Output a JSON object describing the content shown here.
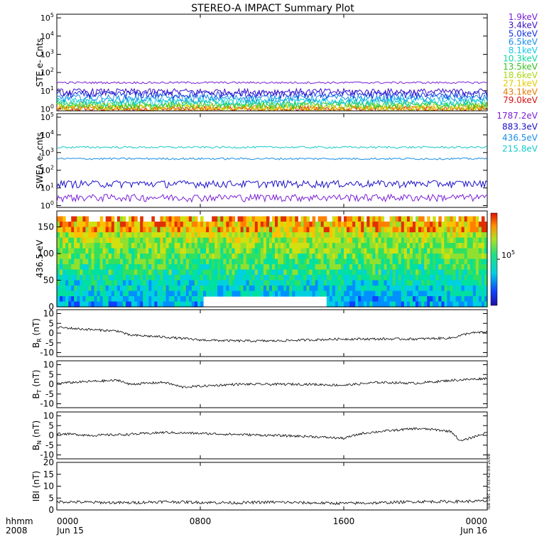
{
  "title": "STEREO-A IMPACT Summary Plot",
  "stamp": "Tue Dec 13 03:42:59 2008",
  "chart_data": {
    "type": "line",
    "x_axis": {
      "row_label_1": "hhmm",
      "row_label_2": "2008",
      "ticks": [
        {
          "time": "0000",
          "date": "Jun 15"
        },
        {
          "time": "0800",
          "date": ""
        },
        {
          "time": "1600",
          "date": ""
        },
        {
          "time": "0000",
          "date": "Jun 16"
        }
      ],
      "range_hours": [
        0,
        24
      ]
    },
    "panels": [
      {
        "id": "ste",
        "kind": "log-lines",
        "ylabel": "STE e- Cnts",
        "y_exponents": [
          0,
          1,
          2,
          3,
          4,
          5
        ],
        "series": [
          {
            "name": "1.9keV",
            "color": "#7a1fd6",
            "level": 28
          },
          {
            "name": "3.4keV",
            "color": "#3b10c8",
            "level": 9
          },
          {
            "name": "5.0keV",
            "color": "#1535e0",
            "level": 6.5
          },
          {
            "name": "6.5keV",
            "color": "#1a8ee8",
            "level": 4.2
          },
          {
            "name": "8.1keV",
            "color": "#18c8e8",
            "level": 3.0
          },
          {
            "name": "10.3keV",
            "color": "#10d8a0",
            "level": 2.3
          },
          {
            "name": "13.5keV",
            "color": "#38c020",
            "level": 1.8
          },
          {
            "name": "18.6keV",
            "color": "#a8d810",
            "level": 1.45
          },
          {
            "name": "27.1keV",
            "color": "#e8c800",
            "level": 1.2
          },
          {
            "name": "43.1keV",
            "color": "#e87a00",
            "level": 1.05
          },
          {
            "name": "79.0keV",
            "color": "#d81010",
            "level": 1.0
          }
        ]
      },
      {
        "id": "swea",
        "kind": "log-lines",
        "ylabel": "SWEA e- cnts",
        "y_exponents": [
          0,
          1,
          2,
          3,
          4,
          5
        ],
        "series": [
          {
            "name": "1787.2eV",
            "color": "#7a1fd6",
            "level": 3
          },
          {
            "name": "883.3eV",
            "color": "#1a10c8",
            "level": 18
          },
          {
            "name": "436.5eV",
            "color": "#1a8ee8",
            "level": 450
          },
          {
            "name": "215.8eV",
            "color": "#18c8c8",
            "level": 2000
          }
        ]
      },
      {
        "id": "pad",
        "kind": "spectrogram",
        "ylabel": "436.5 eV",
        "yticks": [
          0,
          50,
          100,
          150
        ],
        "ylim": [
          0,
          180
        ],
        "colorbar_label": "10",
        "colorbar_exp": "5"
      },
      {
        "id": "br",
        "kind": "line",
        "ylabel": "B",
        "ylabel_sub": "R",
        "ylabel_unit": " (nT)",
        "yticks": [
          -10,
          -5,
          0,
          5,
          10
        ],
        "ylim": [
          -12,
          12
        ],
        "series": [
          {
            "hours": [
              0,
              1.5,
              3.5,
              4,
              6,
              8,
              10,
              12,
              14,
              16,
              18,
              20,
              22,
              23,
              24
            ],
            "values": [
              3,
              2,
              1,
              -1,
              -2,
              -3.5,
              -4,
              -4,
              -3.5,
              -3,
              -3,
              -3,
              -2.5,
              0,
              0.5
            ]
          }
        ]
      },
      {
        "id": "bt",
        "kind": "line",
        "ylabel": "B",
        "ylabel_sub": "T",
        "ylabel_unit": " (nT)",
        "yticks": [
          -10,
          -5,
          0,
          5,
          10
        ],
        "ylim": [
          -12,
          12
        ],
        "series": [
          {
            "hours": [
              0,
              2,
              3.5,
              4,
              6,
              7,
              8,
              10,
              12,
              14,
              16,
              18,
              20,
              22,
              24
            ],
            "values": [
              0.5,
              1.5,
              2,
              0,
              1,
              -1.5,
              -1,
              0,
              0,
              0,
              -0.5,
              1,
              0.5,
              2,
              3
            ]
          }
        ]
      },
      {
        "id": "bn",
        "kind": "line",
        "ylabel": "B",
        "ylabel_sub": "N",
        "ylabel_unit": " (nT)",
        "yticks": [
          -10,
          -5,
          0,
          5,
          10
        ],
        "ylim": [
          -12,
          12
        ],
        "series": [
          {
            "hours": [
              0,
              2,
              4,
              6,
              8,
              10,
              12,
              14,
              15,
              16,
              17,
              18,
              20,
              21,
              22,
              22.5,
              24
            ],
            "values": [
              1,
              0,
              0.5,
              1.5,
              1,
              0.5,
              0,
              -0.5,
              -1,
              -1.5,
              1,
              2,
              3.5,
              3,
              2,
              -3,
              1.5
            ]
          }
        ]
      },
      {
        "id": "bmag",
        "kind": "line",
        "ylabel": "IBI (nT)",
        "yticks": [
          0,
          5,
          10,
          15,
          20
        ],
        "ylim": [
          0,
          20
        ],
        "series": [
          {
            "hours": [
              0,
              2,
              4,
              6,
              8,
              10,
              12,
              14,
              16,
              18,
              20,
              22,
              24
            ],
            "values": [
              3.5,
              3.2,
              3,
              3.5,
              3.2,
              3,
              3.3,
              3,
              2.8,
              3,
              3.5,
              3.5,
              3.8
            ]
          }
        ]
      }
    ]
  }
}
